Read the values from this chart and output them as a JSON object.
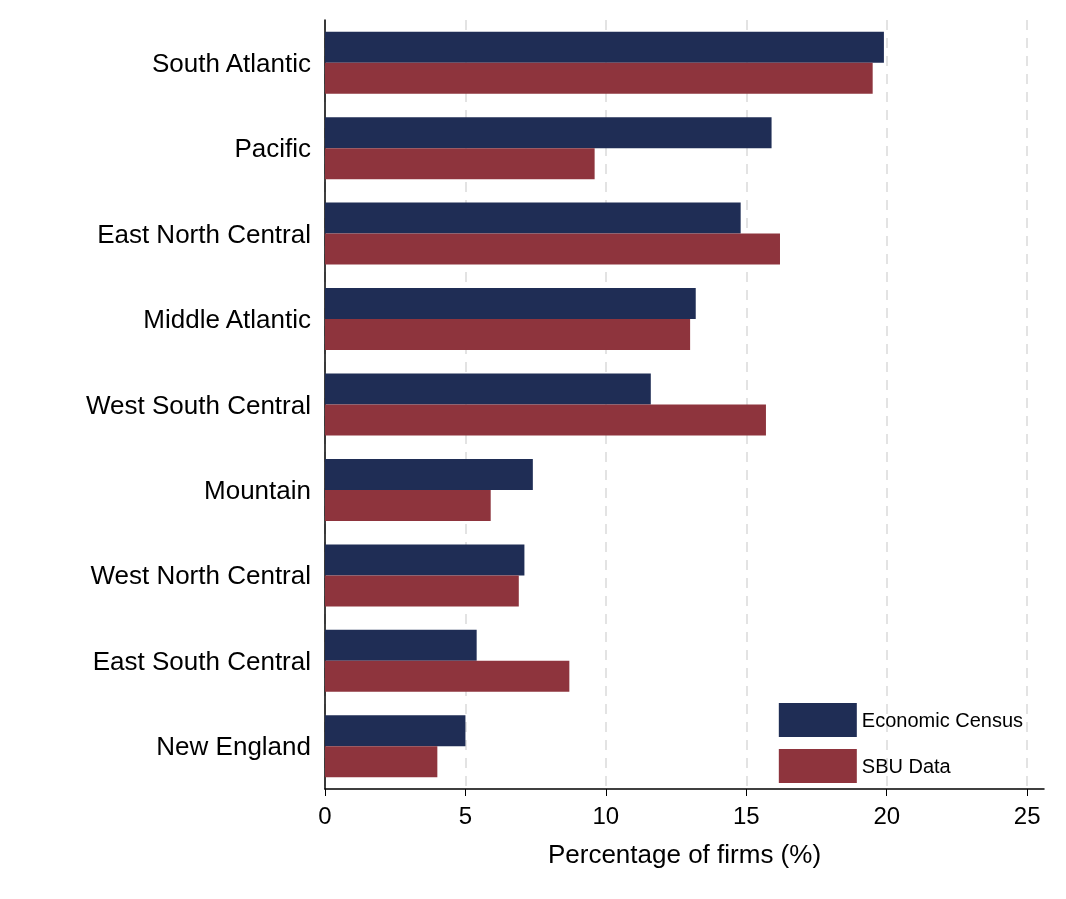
{
  "chart_data": {
    "type": "bar",
    "orientation": "horizontal",
    "xlabel": "Percentage of firms (%)",
    "categories": [
      "South Atlantic",
      "Pacific",
      "East North Central",
      "Middle Atlantic",
      "West South Central",
      "Mountain",
      "West North Central",
      "East South Central",
      "New England"
    ],
    "series": [
      {
        "name": "Economic Census",
        "color": "#1f2d55",
        "values": [
          19.9,
          15.9,
          14.8,
          13.2,
          11.6,
          7.4,
          7.1,
          5.4,
          5.0
        ]
      },
      {
        "name": "SBU Data",
        "color": "#8e343d",
        "values": [
          19.5,
          9.6,
          16.2,
          13.0,
          15.7,
          5.9,
          6.9,
          8.7,
          4.0
        ]
      }
    ],
    "xlim": [
      0,
      25.6
    ],
    "xticks": [
      0,
      5,
      10,
      15,
      20,
      25
    ],
    "grid": "x",
    "legend": "bottom right"
  }
}
